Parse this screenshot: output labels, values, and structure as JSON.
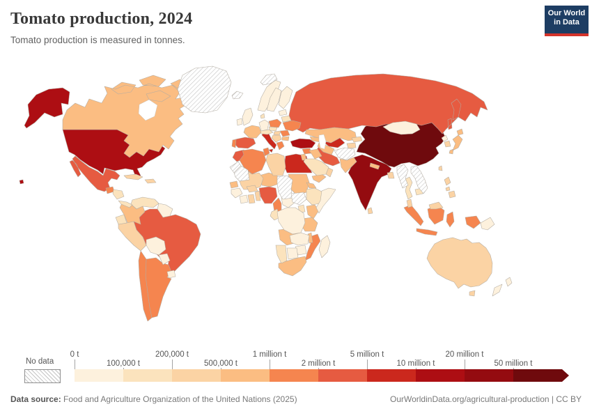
{
  "header": {
    "title": "Tomato production, 2024",
    "subtitle": "Tomato production is measured in tonnes.",
    "logo": {
      "line1": "Our World",
      "line2": "in Data"
    }
  },
  "footer": {
    "source_label": "Data source:",
    "source_text": " Food and Agriculture Organization of the United Nations (2025)",
    "right_text": "OurWorldinData.org/agricultural-production | CC BY"
  },
  "chart_data": {
    "type": "heatmap",
    "subtype": "choropleth-world-map",
    "title": "Tomato production, 2024",
    "unit": "tonnes",
    "legend_no_data_label": "No data",
    "bin_labels": [
      "0 t",
      "100,000 t",
      "200,000 t",
      "500,000 t",
      "1 million t",
      "2 million t",
      "5 million t",
      "10 million t",
      "20 million t",
      "50 million t"
    ],
    "bin_colors": [
      "#fdf1dd",
      "#fbe3bd",
      "#fbd3a4",
      "#fbbd82",
      "#f5854f",
      "#e65b41",
      "#cb281d",
      "#ad0e13",
      "#940b10",
      "#6f0a0d"
    ],
    "bin_ranges": [
      "0–100,000 t",
      "100,000–200,000 t",
      "200,000–500,000 t",
      "500,000 t–1 million t",
      "1–2 million t",
      "2–5 million t",
      "5–10 million t",
      "10–20 million t",
      "20–50 million t",
      "50+ million t"
    ],
    "countries": [
      {
        "id": "china",
        "label": "China",
        "bin": 9
      },
      {
        "id": "india",
        "label": "India",
        "bin": 8
      },
      {
        "id": "united-states",
        "label": "United States",
        "bin": 7
      },
      {
        "id": "turkey",
        "label": "Turkey",
        "bin": 7
      },
      {
        "id": "italy",
        "label": "Italy",
        "bin": 6
      },
      {
        "id": "egypt",
        "label": "Egypt",
        "bin": 6
      },
      {
        "id": "uzbekistan",
        "label": "Uzbekistan",
        "bin": 6
      },
      {
        "id": "mexico",
        "label": "Mexico",
        "bin": 5
      },
      {
        "id": "brazil",
        "label": "Brazil",
        "bin": 5
      },
      {
        "id": "spain",
        "label": "Spain",
        "bin": 5
      },
      {
        "id": "russia",
        "label": "Russia",
        "bin": 5
      },
      {
        "id": "iran",
        "label": "Iran",
        "bin": 5
      },
      {
        "id": "nigeria",
        "label": "Nigeria",
        "bin": 5
      },
      {
        "id": "morocco",
        "label": "Morocco",
        "bin": 5
      },
      {
        "id": "argentina",
        "label": "Argentina",
        "bin": 4
      },
      {
        "id": "chile",
        "label": "Chile",
        "bin": 4
      },
      {
        "id": "portugal",
        "label": "Portugal",
        "bin": 4
      },
      {
        "id": "poland",
        "label": "Poland",
        "bin": 4
      },
      {
        "id": "ukraine",
        "label": "Ukraine",
        "bin": 4
      },
      {
        "id": "romania",
        "label": "Romania",
        "bin": 4
      },
      {
        "id": "greece",
        "label": "Greece",
        "bin": 4
      },
      {
        "id": "syria",
        "label": "Syria",
        "bin": 4
      },
      {
        "id": "indonesia",
        "label": "Indonesia",
        "bin": 4
      },
      {
        "id": "algeria",
        "label": "Algeria",
        "bin": 4
      },
      {
        "id": "tunisia",
        "label": "Tunisia",
        "bin": 4
      },
      {
        "id": "cameroon",
        "label": "Cameroon",
        "bin": 4
      },
      {
        "id": "mozambique",
        "label": "Mozambique",
        "bin": 4
      },
      {
        "id": "guatemala",
        "label": "Guatemala",
        "bin": 4
      },
      {
        "id": "canada",
        "label": "Canada",
        "bin": 3
      },
      {
        "id": "france",
        "label": "France",
        "bin": 3
      },
      {
        "id": "colombia",
        "label": "Colombia",
        "bin": 3
      },
      {
        "id": "kazakhstan",
        "label": "Kazakhstan",
        "bin": 3
      },
      {
        "id": "turkmenistan",
        "label": "Turkmenistan",
        "bin": 3
      },
      {
        "id": "iraq",
        "label": "Iraq",
        "bin": 3
      },
      {
        "id": "yemen",
        "label": "Yemen",
        "bin": 3
      },
      {
        "id": "pakistan",
        "label": "Pakistan",
        "bin": 3
      },
      {
        "id": "nepal",
        "label": "Nepal",
        "bin": 3
      },
      {
        "id": "japan",
        "label": "Japan",
        "bin": 3
      },
      {
        "id": "senegal",
        "label": "Senegal",
        "bin": 3
      },
      {
        "id": "niger",
        "label": "Niger",
        "bin": 3
      },
      {
        "id": "sudan",
        "label": "Sudan",
        "bin": 3
      },
      {
        "id": "eritrea",
        "label": "Eritrea",
        "bin": 3
      },
      {
        "id": "kenya",
        "label": "Kenya",
        "bin": 3
      },
      {
        "id": "tanzania",
        "label": "Tanzania",
        "bin": 3
      },
      {
        "id": "angola",
        "label": "Angola",
        "bin": 3
      },
      {
        "id": "malawi",
        "label": "Malawi",
        "bin": 3
      },
      {
        "id": "south-africa",
        "label": "South Africa",
        "bin": 3
      },
      {
        "id": "caucasus",
        "label": "Caucasus states",
        "bin": 3
      },
      {
        "id": "bulgaria",
        "label": "Bulgaria",
        "bin": 3
      },
      {
        "id": "israel-jordan",
        "label": "Israel and Jordan",
        "bin": 3
      },
      {
        "id": "peru",
        "label": "Peru",
        "bin": 2
      },
      {
        "id": "cuba",
        "label": "Cuba",
        "bin": 2
      },
      {
        "id": "hispaniola",
        "label": "Dominican Republic and Haiti",
        "bin": 2
      },
      {
        "id": "hungary",
        "label": "Hungary",
        "bin": 2
      },
      {
        "id": "balkans",
        "label": "Balkan states",
        "bin": 2
      },
      {
        "id": "kyrgyzstan",
        "label": "Kyrgyzstan",
        "bin": 2
      },
      {
        "id": "tajikistan",
        "label": "Tajikistan",
        "bin": 2
      },
      {
        "id": "oman",
        "label": "Oman",
        "bin": 2
      },
      {
        "id": "bangladesh",
        "label": "Bangladesh",
        "bin": 2
      },
      {
        "id": "sri-lanka",
        "label": "Sri Lanka",
        "bin": 2
      },
      {
        "id": "south-korea",
        "label": "South Korea",
        "bin": 2
      },
      {
        "id": "taiwan",
        "label": "Taiwan",
        "bin": 2
      },
      {
        "id": "malaysia",
        "label": "Malaysia",
        "bin": 2
      },
      {
        "id": "malaysia-borneo",
        "label": "Malaysia (Borneo)",
        "bin": 2
      },
      {
        "id": "philippines",
        "label": "Philippines",
        "bin": 2
      },
      {
        "id": "australia",
        "label": "Australia",
        "bin": 2
      },
      {
        "id": "libya",
        "label": "Libya",
        "bin": 2
      },
      {
        "id": "mali",
        "label": "Mali",
        "bin": 2
      },
      {
        "id": "ghana",
        "label": "Ghana",
        "bin": 2
      },
      {
        "id": "burkina-faso",
        "label": "Burkina Faso",
        "bin": 2
      },
      {
        "id": "togo-benin",
        "label": "Togo and Benin",
        "bin": 2
      },
      {
        "id": "venezuela",
        "label": "Venezuela",
        "bin": 1
      },
      {
        "id": "ecuador",
        "label": "Ecuador",
        "bin": 1
      },
      {
        "id": "honduras-nicaragua",
        "label": "Honduras and Nicaragua",
        "bin": 1
      },
      {
        "id": "costa-rica-panama",
        "label": "Costa Rica and Panama",
        "bin": 1
      },
      {
        "id": "denmark",
        "label": "Denmark",
        "bin": 1
      },
      {
        "id": "czech-slovakia",
        "label": "Czechia and Slovakia",
        "bin": 1
      },
      {
        "id": "austria-switzerland",
        "label": "Austria and Switzerland",
        "bin": 1
      },
      {
        "id": "belarus",
        "label": "Belarus",
        "bin": 1
      },
      {
        "id": "saudi-arabia",
        "label": "Saudi Arabia",
        "bin": 1
      },
      {
        "id": "thailand",
        "label": "Thailand",
        "bin": 1
      },
      {
        "id": "cambodia",
        "label": "Cambodia",
        "bin": 1
      },
      {
        "id": "ethiopia",
        "label": "Ethiopia",
        "bin": 1
      },
      {
        "id": "uganda",
        "label": "Uganda",
        "bin": 1
      },
      {
        "id": "congo-gabon",
        "label": "Congo and Gabon",
        "bin": 1
      },
      {
        "id": "namibia",
        "label": "Namibia",
        "bin": 1
      },
      {
        "id": "guyana-suriname",
        "label": "Guyana and Suriname",
        "bin": 0
      },
      {
        "id": "bolivia",
        "label": "Bolivia",
        "bin": 0
      },
      {
        "id": "paraguay",
        "label": "Paraguay",
        "bin": 0
      },
      {
        "id": "uruguay",
        "label": "Uruguay",
        "bin": 0
      },
      {
        "id": "united-kingdom",
        "label": "United Kingdom",
        "bin": 0
      },
      {
        "id": "ireland",
        "label": "Ireland",
        "bin": 0
      },
      {
        "id": "norway",
        "label": "Norway",
        "bin": 0
      },
      {
        "id": "sweden",
        "label": "Sweden",
        "bin": 0
      },
      {
        "id": "finland",
        "label": "Finland",
        "bin": 0
      },
      {
        "id": "germany",
        "label": "Germany",
        "bin": 0
      },
      {
        "id": "baltics",
        "label": "Baltic states",
        "bin": 0
      },
      {
        "id": "mongolia",
        "label": "Mongolia",
        "bin": 0
      },
      {
        "id": "north-korea",
        "label": "North Korea",
        "bin": 0
      },
      {
        "id": "papua-new-guinea",
        "label": "Papua New Guinea",
        "bin": 0
      },
      {
        "id": "new-zealand",
        "label": "New Zealand",
        "bin": 0
      },
      {
        "id": "guinea",
        "label": "Guinea",
        "bin": 0
      },
      {
        "id": "ivory-coast",
        "label": "Côte d'Ivoire",
        "bin": 0
      },
      {
        "id": "somalia",
        "label": "Somalia",
        "bin": 0
      },
      {
        "id": "central-african-republic",
        "label": "Central African Republic",
        "bin": 0
      },
      {
        "id": "drc",
        "label": "Democratic Republic of Congo",
        "bin": 0
      },
      {
        "id": "zambia",
        "label": "Zambia",
        "bin": 0
      },
      {
        "id": "zimbabwe",
        "label": "Zimbabwe",
        "bin": 0
      },
      {
        "id": "botswana",
        "label": "Botswana",
        "bin": 0
      },
      {
        "id": "madagascar",
        "label": "Madagascar",
        "bin": 0
      },
      {
        "id": "greenland",
        "label": "Greenland",
        "bin": null
      },
      {
        "id": "iceland",
        "label": "Iceland",
        "bin": null
      },
      {
        "id": "svalbard",
        "label": "Svalbard",
        "bin": null
      },
      {
        "id": "western-sahara",
        "label": "Western Sahara",
        "bin": null
      },
      {
        "id": "mauritania",
        "label": "Mauritania",
        "bin": null
      },
      {
        "id": "chad",
        "label": "Chad",
        "bin": null
      },
      {
        "id": "south-sudan",
        "label": "South Sudan",
        "bin": null
      },
      {
        "id": "afghanistan",
        "label": "Afghanistan",
        "bin": null
      },
      {
        "id": "myanmar",
        "label": "Myanmar",
        "bin": null
      },
      {
        "id": "vietnam-laos",
        "label": "Vietnam and Laos",
        "bin": null
      }
    ]
  }
}
